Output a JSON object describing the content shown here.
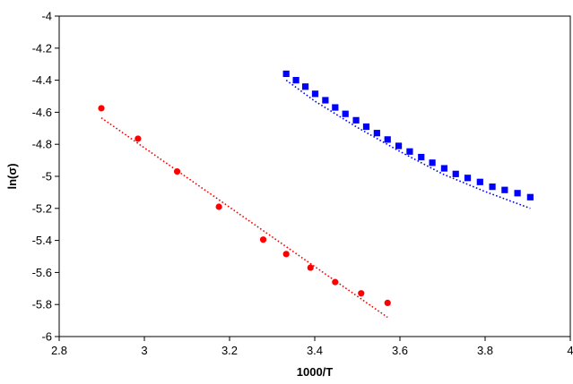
{
  "chart_data": {
    "type": "scatter",
    "title": "",
    "xlabel": "1000/T",
    "ylabel": "ln(σ)",
    "xlim": [
      2.8,
      4.0
    ],
    "ylim": [
      -6.0,
      -4.0
    ],
    "xticks": [
      2.8,
      3.0,
      3.2,
      3.4,
      3.6,
      3.8,
      4.0
    ],
    "xtick_labels": [
      "2.8",
      "3",
      "3.2",
      "3.4",
      "3.6",
      "3.8",
      "4"
    ],
    "yticks": [
      -6.0,
      -5.8,
      -5.6,
      -5.4,
      -5.2,
      -5.0,
      -4.8,
      -4.6,
      -4.4,
      -4.2,
      -4.0
    ],
    "ytick_labels": [
      "-6",
      "-5.8",
      "-5.6",
      "-5.4",
      "-5.2",
      "-5",
      "-4.8",
      "-4.6",
      "-4.4",
      "-4.2",
      "-4"
    ],
    "grid": false,
    "legend": "none",
    "series": [
      {
        "marker": "circle",
        "color": "#ff0000",
        "x": [
          2.899,
          2.985,
          3.077,
          3.175,
          3.279,
          3.333,
          3.39,
          3.448,
          3.509,
          3.571
        ],
        "y": [
          -4.575,
          -4.765,
          -4.97,
          -5.19,
          -5.395,
          -5.485,
          -5.57,
          -5.66,
          -5.73,
          -5.79
        ],
        "trendline": {
          "style": "dotted",
          "color": "#ff0000",
          "x": [
            2.899,
            3.571
          ],
          "y": [
            -4.635,
            -5.88
          ]
        }
      },
      {
        "marker": "square",
        "color": "#0000ff",
        "x": [
          3.333,
          3.356,
          3.378,
          3.401,
          3.425,
          3.448,
          3.472,
          3.497,
          3.521,
          3.546,
          3.571,
          3.597,
          3.623,
          3.65,
          3.676,
          3.704,
          3.731,
          3.759,
          3.788,
          3.817,
          3.846,
          3.876,
          3.906
        ],
        "y": [
          -4.36,
          -4.4,
          -4.44,
          -4.485,
          -4.525,
          -4.57,
          -4.61,
          -4.65,
          -4.69,
          -4.73,
          -4.77,
          -4.81,
          -4.845,
          -4.88,
          -4.915,
          -4.95,
          -4.985,
          -5.01,
          -5.035,
          -5.065,
          -5.085,
          -5.105,
          -5.13
        ],
        "trendline": {
          "style": "dotted",
          "color": "#0000ff",
          "x": [
            3.333,
            3.4,
            3.5,
            3.6,
            3.7,
            3.8,
            3.906
          ],
          "y": [
            -4.4,
            -4.53,
            -4.695,
            -4.845,
            -4.985,
            -5.095,
            -5.2
          ]
        }
      }
    ]
  }
}
